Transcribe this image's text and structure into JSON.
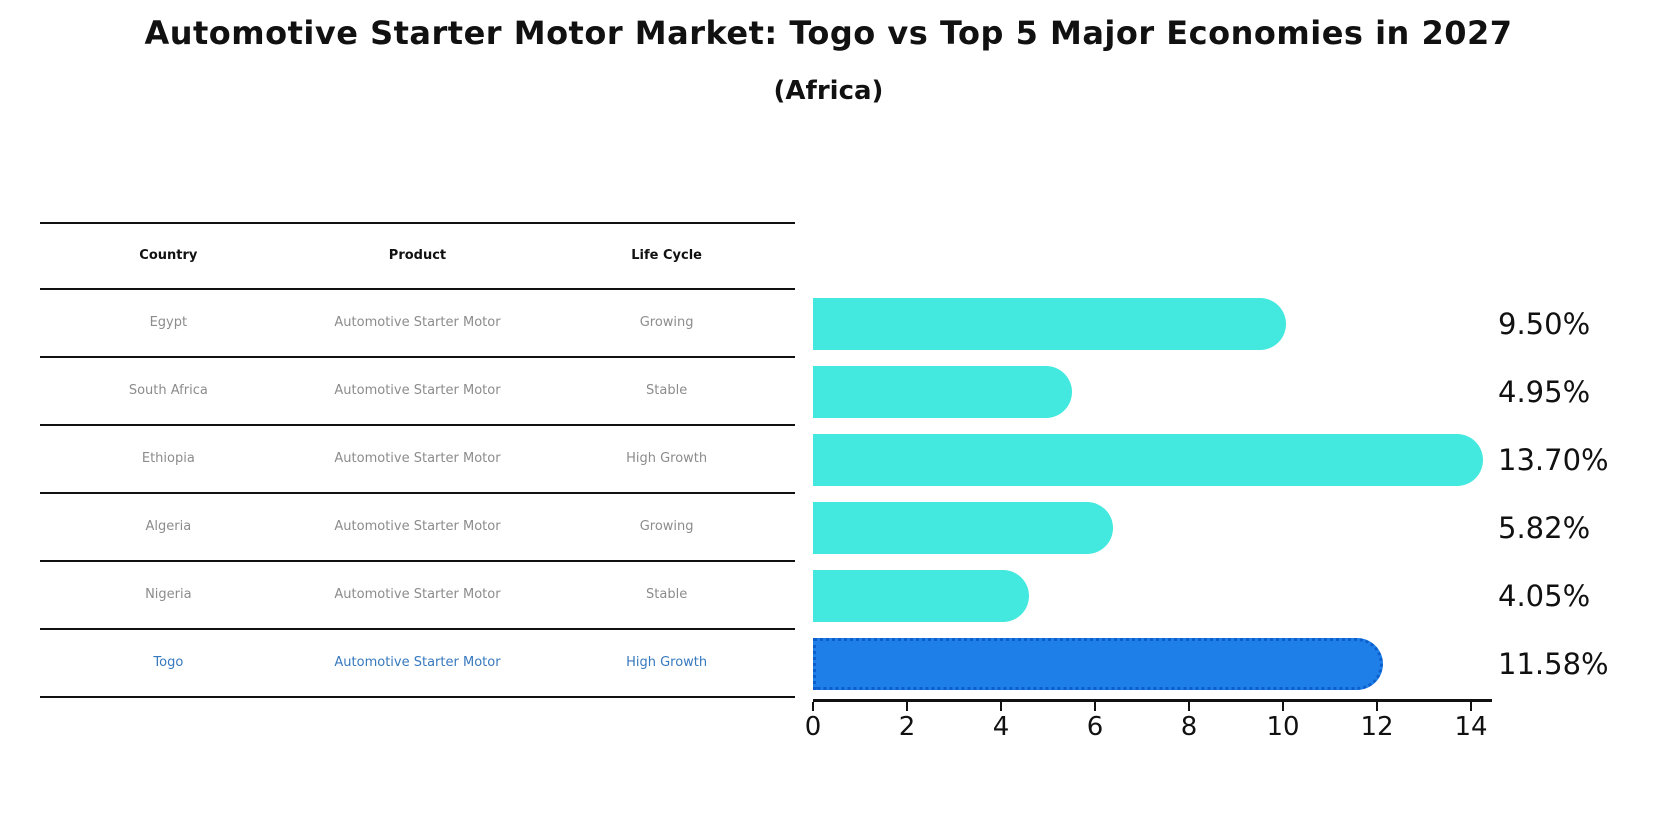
{
  "title": "Automotive Starter Motor Market: Togo vs Top 5 Major Economies in 2027",
  "subtitle": "(Africa)",
  "table": {
    "headers": [
      "Country",
      "Product",
      "Life Cycle"
    ],
    "rows": [
      {
        "country": "Egypt",
        "product": "Automotive Starter Motor",
        "life_cycle": "Growing",
        "highlight": false
      },
      {
        "country": "South Africa",
        "product": "Automotive Starter Motor",
        "life_cycle": "Stable",
        "highlight": false
      },
      {
        "country": "Ethiopia",
        "product": "Automotive Starter Motor",
        "life_cycle": "High Growth",
        "highlight": false
      },
      {
        "country": "Algeria",
        "product": "Automotive Starter Motor",
        "life_cycle": "Growing",
        "highlight": false
      },
      {
        "country": "Nigeria",
        "product": "Automotive Starter Motor",
        "life_cycle": "Stable",
        "highlight": false
      },
      {
        "country": "Togo",
        "product": "Automotive Starter Motor",
        "life_cycle": "High Growth",
        "highlight": true
      }
    ]
  },
  "chart_data": {
    "type": "bar",
    "orientation": "horizontal",
    "title": "Automotive Starter Motor Market: Togo vs Top 5 Major Economies in 2027",
    "subtitle": "(Africa)",
    "categories": [
      "Egypt",
      "South Africa",
      "Ethiopia",
      "Algeria",
      "Nigeria",
      "Togo"
    ],
    "values": [
      9.5,
      4.95,
      13.7,
      5.82,
      4.05,
      11.58
    ],
    "value_labels": [
      "9.50%",
      "4.95%",
      "13.70%",
      "5.82%",
      "4.05%",
      "11.58%"
    ],
    "highlight_category": "Togo",
    "xlabel": "",
    "ylabel": "",
    "xlim": [
      0,
      14
    ],
    "xticks": [
      0,
      2,
      4,
      6,
      8,
      10,
      12,
      14
    ],
    "grid": false,
    "legend": false,
    "colors": {
      "bar": "#43e8df",
      "highlight_bar": "#1e7fe8",
      "highlight_bar_border": "#0d5ecd",
      "highlight_text": "#3779be",
      "table_text": "#8c8c8c",
      "axis": "#111111"
    }
  }
}
